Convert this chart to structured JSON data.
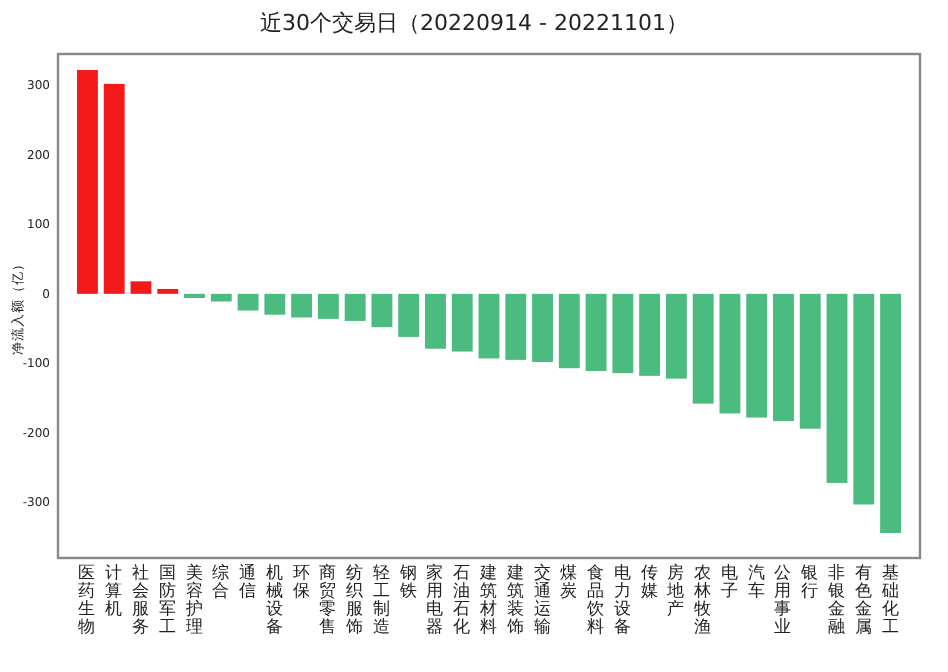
{
  "chart_data": {
    "type": "bar",
    "title": "近30个交易日（20220914 - 20221101）",
    "ylabel": "净流入额（亿）",
    "categories": [
      "医药生物",
      "计算机",
      "社会服务",
      "国防军工",
      "美容护理",
      "综合",
      "通信",
      "机械设备",
      "环保",
      "商贸零售",
      "纺织服饰",
      "轻工制造",
      "钢铁",
      "家用电器",
      "石油石化",
      "建筑材料",
      "建筑装饰",
      "交通运输",
      "煤炭",
      "食品饮料",
      "电力设备",
      "传媒",
      "房地产",
      "农林牧渔",
      "电子",
      "汽车",
      "公用事业",
      "银行",
      "非银金融",
      "有色金属",
      "基础化工"
    ],
    "values": [
      322,
      302,
      18,
      7,
      -6,
      -11,
      -24,
      -30,
      -34,
      -36,
      -39,
      -48,
      -62,
      -79,
      -83,
      -93,
      -95,
      -98,
      -107,
      -111,
      -114,
      -118,
      -122,
      -158,
      -172,
      -178,
      -183,
      -194,
      -272,
      -303,
      -344
    ],
    "colors": [
      "#f51a1a",
      "#f51a1a",
      "#f51a1a",
      "#f51a1a",
      "#4cbb7f",
      "#4cbb7f",
      "#4cbb7f",
      "#4cbb7f",
      "#4cbb7f",
      "#4cbb7f",
      "#4cbb7f",
      "#4cbb7f",
      "#4cbb7f",
      "#4cbb7f",
      "#4cbb7f",
      "#4cbb7f",
      "#4cbb7f",
      "#4cbb7f",
      "#4cbb7f",
      "#4cbb7f",
      "#4cbb7f",
      "#4cbb7f",
      "#4cbb7f",
      "#4cbb7f",
      "#4cbb7f",
      "#4cbb7f",
      "#4cbb7f",
      "#4cbb7f",
      "#4cbb7f",
      "#4cbb7f",
      "#4cbb7f"
    ],
    "ylim": [
      -380,
      345
    ],
    "yticks": [
      -300,
      -200,
      -100,
      0,
      100,
      200,
      300
    ],
    "grid": false
  }
}
